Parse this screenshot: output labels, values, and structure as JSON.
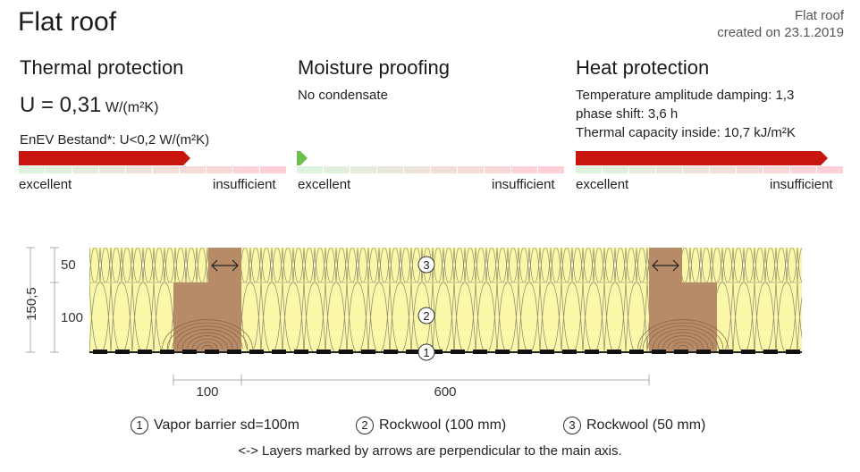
{
  "header": {
    "title": "Flat roof",
    "meta_type": "Flat roof",
    "meta_created": "created on 23.1.2019"
  },
  "thermal": {
    "heading": "Thermal protection",
    "u_value": "U = 0,31",
    "u_unit": "W/(m²K)",
    "requirement": "EnEV Bestand*: U<0,2 W/(m²K)",
    "scale_left": "excellent",
    "scale_right": "insufficient",
    "rating_fraction": 0.64
  },
  "moisture": {
    "heading": "Moisture proofing",
    "status": "No condensate",
    "scale_left": "excellent",
    "scale_right": "insufficient",
    "rating_fraction": 0.04
  },
  "heat": {
    "heading": "Heat protection",
    "lines": [
      "Temperature amplitude damping: 1,3",
      "phase shift: 3,6 h",
      "Thermal capacity inside: 10,7 kJ/m²K"
    ],
    "scale_left": "excellent",
    "scale_right": "insufficient",
    "rating_fraction": 0.94
  },
  "colors": {
    "bar_red": "#c8150e",
    "bar_green": "#6cc04a",
    "insulation": "#fbf7a9",
    "timber": "#b78b67"
  },
  "section": {
    "total_thickness": "150,5",
    "layer_top_thickness": "50",
    "layer_bottom_thickness": "100",
    "dim_timber": "100",
    "dim_spacing": "600",
    "marker_3": "3",
    "marker_2": "2",
    "marker_1": "1"
  },
  "legend": [
    {
      "num": "1",
      "label": "Vapor barrier sd=100m"
    },
    {
      "num": "2",
      "label": "Rockwool (100 mm)"
    },
    {
      "num": "3",
      "label": "Rockwool (50 mm)"
    }
  ],
  "note": "<-> Layers marked by arrows are perpendicular to the main axis."
}
